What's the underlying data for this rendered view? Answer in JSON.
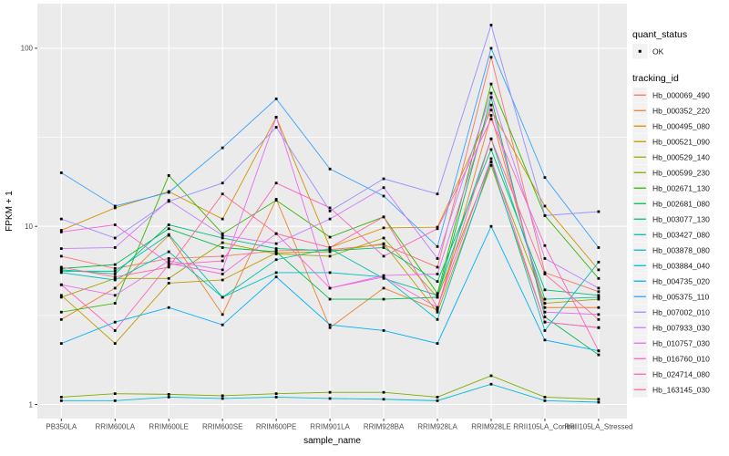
{
  "chart": {
    "y_axis": {
      "title": "FPKM + 1",
      "tick_labels": [
        "100",
        "10",
        "1"
      ]
    },
    "x_axis": {
      "title": "sample_name"
    }
  },
  "legend": {
    "quant_status": {
      "title": "quant_status",
      "items": [
        {
          "label": "OK",
          "marker": "point"
        }
      ]
    },
    "tracking_id_title": "tracking_id"
  },
  "colors": {
    "panel_background": "#EBEBEB",
    "gridline": "#FFFFFF",
    "tick_label": "#4D4D4D",
    "axis_title": "#000000",
    "point": "#000000",
    "legend_key_background": "#F2F2F2",
    "legend_label": "#1A1A1A"
  },
  "chart_data": {
    "type": "line",
    "title": "",
    "xlabel": "sample_name",
    "ylabel": "FPKM + 1",
    "y_scale": "log10",
    "ylim": [
      1,
      140
    ],
    "y_major_ticks": [
      1,
      10,
      100
    ],
    "y_minor_ticks": [
      3.162,
      31.62
    ],
    "grid": true,
    "legend_position": "right",
    "point_marker": "black-square",
    "quant_status": "OK",
    "categories": [
      "PB350LA",
      "RRIM600LA",
      "RRIM600LE",
      "RRIM600SE",
      "RRIM600PE",
      "RRIM901LA",
      "RRIM928BA",
      "RRIM928LA",
      "RRIM928LE",
      "RRII105LA_Control",
      "RRII105LA_Stressed"
    ],
    "series": [
      {
        "name": "Hb_000069_490",
        "color": "#F8766D",
        "values": [
          6.8,
          5.8,
          6.6,
          6.8,
          7.3,
          7.4,
          7.9,
          5.9,
          89,
          5.5,
          4.3
        ]
      },
      {
        "name": "Hb_000352_220",
        "color": "#EA8331",
        "values": [
          3.0,
          4.5,
          8.9,
          3.2,
          14.2,
          2.7,
          4.5,
          3.4,
          42,
          3.5,
          3.5
        ]
      },
      {
        "name": "Hb_000495_080",
        "color": "#D89000",
        "values": [
          9.5,
          12.7,
          15.7,
          11.0,
          41,
          7.6,
          9.8,
          9.9,
          45,
          13.0,
          5.7
        ]
      },
      {
        "name": "Hb_000521_090",
        "color": "#C09B00",
        "values": [
          4.1,
          2.2,
          4.8,
          5.0,
          7.1,
          7.2,
          8.0,
          3.3,
          22,
          2.9,
          2.7
        ]
      },
      {
        "name": "Hb_000529_140",
        "color": "#A3A500",
        "values": [
          4.0,
          5.1,
          5.1,
          8.1,
          7.0,
          6.8,
          8.6,
          4.0,
          23,
          3.7,
          3.9
        ]
      },
      {
        "name": "Hb_000599_230",
        "color": "#7CAE00",
        "values": [
          1.1,
          1.15,
          1.14,
          1.12,
          1.15,
          1.17,
          1.17,
          1.1,
          1.45,
          1.1,
          1.07
        ]
      },
      {
        "name": "Hb_002671_130",
        "color": "#39B600",
        "values": [
          3.3,
          3.7,
          19.3,
          9.1,
          14.0,
          8.7,
          11.3,
          4.2,
          63,
          11.5,
          5.1
        ]
      },
      {
        "name": "Hb_002681_080",
        "color": "#00BB4E",
        "values": [
          5.8,
          6.1,
          9.7,
          7.6,
          7.2,
          3.9,
          3.9,
          4.0,
          53,
          3.1,
          1.9
        ]
      },
      {
        "name": "Hb_003077_130",
        "color": "#00BF7D",
        "values": [
          5.7,
          5.4,
          10.2,
          8.6,
          7.5,
          7.3,
          7.6,
          4.9,
          27,
          4.4,
          4.1
        ]
      },
      {
        "name": "Hb_003427_080",
        "color": "#00C1A3",
        "values": [
          5.6,
          5.6,
          9.0,
          4.0,
          6.5,
          7.5,
          5.1,
          4.1,
          31,
          3.9,
          4.0
        ]
      },
      {
        "name": "Hb_003878_080",
        "color": "#00BFC4",
        "values": [
          5.5,
          5.0,
          7.2,
          4.0,
          5.5,
          5.5,
          5.2,
          3.0,
          23,
          2.6,
          6.3
        ]
      },
      {
        "name": "Hb_003884_040",
        "color": "#00BBDA",
        "values": [
          1.05,
          1.05,
          1.1,
          1.08,
          1.1,
          1.08,
          1.07,
          1.05,
          1.3,
          1.05,
          1.03
        ]
      },
      {
        "name": "Hb_004735_020",
        "color": "#00B0F6",
        "values": [
          2.2,
          2.9,
          3.5,
          2.8,
          5.2,
          2.8,
          2.6,
          2.2,
          10,
          2.3,
          2.0
        ]
      },
      {
        "name": "Hb_005375_110",
        "color": "#35A2FF",
        "values": [
          20,
          13,
          15.5,
          27.6,
          52,
          21,
          14.8,
          7.7,
          100,
          18.8,
          7.6
        ]
      },
      {
        "name": "Hb_007002_010",
        "color": "#9590FF",
        "values": [
          11,
          8.6,
          13.8,
          17.5,
          36,
          12.2,
          18.5,
          15.2,
          135,
          11.5,
          12.1
        ]
      },
      {
        "name": "Hb_007933_030",
        "color": "#C77CFF",
        "values": [
          7.5,
          7.6,
          14.0,
          8.9,
          8.0,
          11.0,
          16.5,
          6.6,
          56,
          6.6,
          4.5
        ]
      },
      {
        "name": "Hb_010757_030",
        "color": "#E76BF3",
        "values": [
          4.7,
          4.1,
          6.4,
          5.7,
          41,
          4.5,
          5.3,
          5.4,
          48,
          3.3,
          3.2
        ]
      },
      {
        "name": "Hb_016760_010",
        "color": "#FA62DB",
        "values": [
          9.3,
          10.2,
          6.2,
          5.4,
          9.1,
          4.5,
          5.2,
          3.5,
          24,
          2.9,
          2.7
        ]
      },
      {
        "name": "Hb_024714_080",
        "color": "#FF62BC",
        "values": [
          4.7,
          2.6,
          6.1,
          6.4,
          17.5,
          12.7,
          6.8,
          9.7,
          40,
          7.8,
          2.0
        ]
      },
      {
        "name": "Hb_163145_030",
        "color": "#FF6A98",
        "values": [
          5.9,
          5.2,
          5.9,
          15.2,
          9.1,
          7.6,
          11.3,
          3.5,
          31,
          5.4,
          3.0
        ]
      }
    ]
  }
}
